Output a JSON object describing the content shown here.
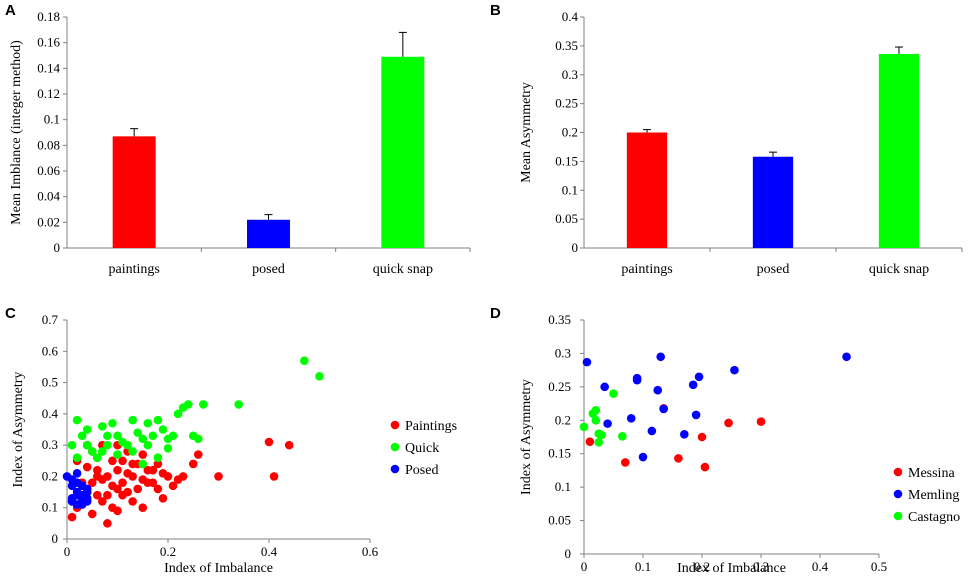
{
  "chart_data": [
    {
      "panel": "A",
      "type": "bar",
      "categories": [
        "paintings",
        "posed",
        "quick snap"
      ],
      "values": [
        0.087,
        0.022,
        0.149
      ],
      "errors": [
        0.006,
        0.004,
        0.019
      ],
      "colors": [
        "#ff0000",
        "#0000ff",
        "#00ff00"
      ],
      "title": "",
      "xlabel": "",
      "ylabel": "Mean Imblance (integer method)",
      "ylim": [
        0,
        0.18
      ],
      "yticks": [
        "0",
        "0.02",
        "0.04",
        "0.06",
        "0.08",
        "0.1",
        "0.12",
        "0.14",
        "0.16",
        "0.18"
      ]
    },
    {
      "panel": "B",
      "type": "bar",
      "categories": [
        "paintings",
        "posed",
        "quick snap"
      ],
      "values": [
        0.2,
        0.158,
        0.336
      ],
      "errors": [
        0.005,
        0.008,
        0.012
      ],
      "colors": [
        "#ff0000",
        "#0000ff",
        "#00ff00"
      ],
      "title": "",
      "xlabel": "",
      "ylabel": "Mean Asymmetry",
      "ylim": [
        0,
        0.4
      ],
      "yticks": [
        "0",
        "0.05",
        "0.1",
        "0.15",
        "0.2",
        "0.25",
        "0.3",
        "0.35",
        "0.4"
      ]
    },
    {
      "panel": "C",
      "type": "scatter",
      "xlabel": "Index of Imbalance",
      "ylabel": "Index of Asymmetry",
      "xlim": [
        0,
        0.6
      ],
      "ylim": [
        0,
        0.7
      ],
      "xticks": [
        "0",
        "0.2",
        "0.4",
        "0.6"
      ],
      "yticks": [
        "0",
        "0.1",
        "0.2",
        "0.3",
        "0.4",
        "0.5",
        "0.6",
        "0.7"
      ],
      "series": [
        {
          "name": "Paintings",
          "color": "#ff0000",
          "points": [
            [
              0.01,
              0.07
            ],
            [
              0.02,
              0.1
            ],
            [
              0.03,
              0.12
            ],
            [
              0.04,
              0.15
            ],
            [
              0.05,
              0.18
            ],
            [
              0.06,
              0.22
            ],
            [
              0.07,
              0.19
            ],
            [
              0.08,
              0.2
            ],
            [
              0.09,
              0.25
            ],
            [
              0.1,
              0.22
            ],
            [
              0.11,
              0.18
            ],
            [
              0.12,
              0.15
            ],
            [
              0.13,
              0.2
            ],
            [
              0.14,
              0.24
            ],
            [
              0.15,
              0.27
            ],
            [
              0.16,
              0.22
            ],
            [
              0.17,
              0.18
            ],
            [
              0.18,
              0.16
            ],
            [
              0.19,
              0.13
            ],
            [
              0.2,
              0.2
            ],
            [
              0.04,
              0.3
            ],
            [
              0.05,
              0.28
            ],
            [
              0.06,
              0.26
            ],
            [
              0.07,
              0.3
            ],
            [
              0.08,
              0.14
            ],
            [
              0.09,
              0.1
            ],
            [
              0.1,
              0.16
            ],
            [
              0.12,
              0.21
            ],
            [
              0.13,
              0.24
            ],
            [
              0.15,
              0.19
            ],
            [
              0.17,
              0.22
            ],
            [
              0.03,
              0.18
            ],
            [
              0.06,
              0.14
            ],
            [
              0.08,
              0.05
            ],
            [
              0.1,
              0.09
            ],
            [
              0.05,
              0.08
            ],
            [
              0.07,
              0.12
            ],
            [
              0.11,
              0.25
            ],
            [
              0.14,
              0.16
            ],
            [
              0.16,
              0.18
            ],
            [
              0.02,
              0.25
            ],
            [
              0.04,
              0.23
            ],
            [
              0.06,
              0.2
            ],
            [
              0.09,
              0.17
            ],
            [
              0.11,
              0.14
            ],
            [
              0.13,
              0.12
            ],
            [
              0.15,
              0.1
            ],
            [
              0.18,
              0.24
            ],
            [
              0.21,
              0.17
            ],
            [
              0.23,
              0.2
            ],
            [
              0.25,
              0.24
            ],
            [
              0.26,
              0.27
            ],
            [
              0.3,
              0.2
            ],
            [
              0.4,
              0.31
            ],
            [
              0.41,
              0.2
            ],
            [
              0.44,
              0.3
            ],
            [
              0.22,
              0.19
            ],
            [
              0.19,
              0.21
            ],
            [
              0.12,
              0.28
            ],
            [
              0.1,
              0.3
            ]
          ]
        },
        {
          "name": "Quick",
          "color": "#00ff00",
          "points": [
            [
              0.01,
              0.3
            ],
            [
              0.02,
              0.26
            ],
            [
              0.02,
              0.38
            ],
            [
              0.03,
              0.33
            ],
            [
              0.04,
              0.3
            ],
            [
              0.05,
              0.28
            ],
            [
              0.06,
              0.26
            ],
            [
              0.07,
              0.36
            ],
            [
              0.08,
              0.33
            ],
            [
              0.09,
              0.37
            ],
            [
              0.1,
              0.33
            ],
            [
              0.11,
              0.31
            ],
            [
              0.12,
              0.3
            ],
            [
              0.13,
              0.28
            ],
            [
              0.14,
              0.34
            ],
            [
              0.15,
              0.32
            ],
            [
              0.16,
              0.37
            ],
            [
              0.17,
              0.33
            ],
            [
              0.18,
              0.38
            ],
            [
              0.19,
              0.35
            ],
            [
              0.2,
              0.32
            ],
            [
              0.21,
              0.33
            ],
            [
              0.22,
              0.4
            ],
            [
              0.23,
              0.42
            ],
            [
              0.24,
              0.43
            ],
            [
              0.25,
              0.33
            ],
            [
              0.27,
              0.43
            ],
            [
              0.34,
              0.43
            ],
            [
              0.47,
              0.57
            ],
            [
              0.5,
              0.52
            ],
            [
              0.1,
              0.27
            ],
            [
              0.13,
              0.38
            ],
            [
              0.16,
              0.3
            ],
            [
              0.18,
              0.26
            ],
            [
              0.04,
              0.35
            ],
            [
              0.07,
              0.28
            ],
            [
              0.2,
              0.29
            ],
            [
              0.26,
              0.32
            ],
            [
              0.08,
              0.3
            ],
            [
              0.15,
              0.24
            ]
          ]
        },
        {
          "name": "Posed",
          "color": "#0000ff",
          "points": [
            [
              0.0,
              0.2
            ],
            [
              0.01,
              0.17
            ],
            [
              0.01,
              0.13
            ],
            [
              0.02,
              0.15
            ],
            [
              0.02,
              0.18
            ],
            [
              0.02,
              0.11
            ],
            [
              0.03,
              0.14
            ],
            [
              0.03,
              0.17
            ],
            [
              0.03,
              0.12
            ],
            [
              0.04,
              0.15
            ],
            [
              0.04,
              0.16
            ],
            [
              0.04,
              0.13
            ],
            [
              0.01,
              0.19
            ],
            [
              0.02,
              0.21
            ],
            [
              0.03,
              0.11
            ],
            [
              0.02,
              0.14
            ],
            [
              0.01,
              0.12
            ],
            [
              0.04,
              0.12
            ]
          ]
        }
      ],
      "legend": [
        "Paintings",
        "Quick",
        "Posed"
      ]
    },
    {
      "panel": "D",
      "type": "scatter",
      "xlabel": "Index of Imbalance",
      "ylabel": "Index of Asymmetry",
      "xlim": [
        0,
        0.5
      ],
      "ylim": [
        0,
        0.35
      ],
      "xticks": [
        "0",
        "0.1",
        "0.2",
        "0.3",
        "0.4",
        "0.5"
      ],
      "yticks": [
        "0",
        "0.05",
        "0.1",
        "0.15",
        "0.2",
        "0.25",
        "0.3",
        "0.35"
      ],
      "series": [
        {
          "name": "Messina",
          "color": "#ff0000",
          "points": [
            [
              0.01,
              0.168
            ],
            [
              0.07,
              0.137
            ],
            [
              0.135,
              0.218
            ],
            [
              0.16,
              0.143
            ],
            [
              0.2,
              0.175
            ],
            [
              0.205,
              0.13
            ],
            [
              0.245,
              0.196
            ],
            [
              0.3,
              0.198
            ]
          ]
        },
        {
          "name": "Memling",
          "color": "#0000ff",
          "points": [
            [
              0.005,
              0.287
            ],
            [
              0.035,
              0.25
            ],
            [
              0.04,
              0.195
            ],
            [
              0.08,
              0.203
            ],
            [
              0.09,
              0.263
            ],
            [
              0.09,
              0.26
            ],
            [
              0.1,
              0.145
            ],
            [
              0.115,
              0.184
            ],
            [
              0.125,
              0.245
            ],
            [
              0.13,
              0.295
            ],
            [
              0.135,
              0.217
            ],
            [
              0.17,
              0.179
            ],
            [
              0.185,
              0.253
            ],
            [
              0.19,
              0.208
            ],
            [
              0.195,
              0.265
            ],
            [
              0.255,
              0.275
            ],
            [
              0.445,
              0.295
            ]
          ]
        },
        {
          "name": "Castagno",
          "color": "#00ff00",
          "points": [
            [
              0.0,
              0.19
            ],
            [
              0.015,
              0.21
            ],
            [
              0.02,
              0.215
            ],
            [
              0.02,
              0.2
            ],
            [
              0.025,
              0.18
            ],
            [
              0.025,
              0.167
            ],
            [
              0.03,
              0.178
            ],
            [
              0.05,
              0.24
            ],
            [
              0.065,
              0.176
            ]
          ]
        }
      ],
      "legend": [
        "Messina",
        "Memling",
        "Castagno"
      ]
    }
  ],
  "panel_labels": [
    "A",
    "B",
    "C",
    "D"
  ]
}
